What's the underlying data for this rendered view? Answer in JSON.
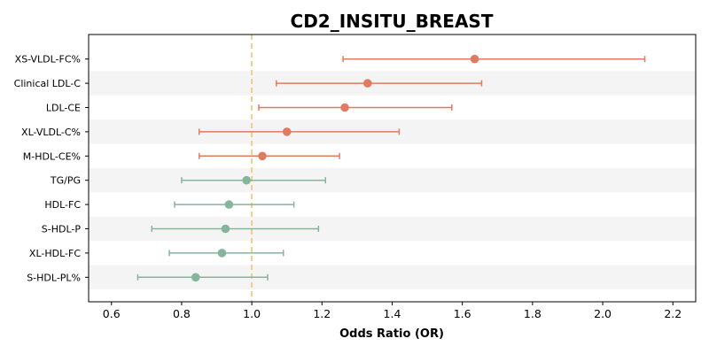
{
  "chart_data": {
    "type": "forest",
    "title": "CD2_INSITU_BREAST",
    "xlabel": "Odds Ratio (OR)",
    "ylabel": "",
    "xlim": [
      0.535,
      2.265
    ],
    "xticks": [
      "0.6",
      "0.8",
      "1.0",
      "1.2",
      "1.4",
      "1.6",
      "1.8",
      "2.0",
      "2.2"
    ],
    "reference_line": 1.0,
    "grid": false,
    "row_banding": true,
    "colors": {
      "positive": "#e07b61",
      "negative": "#85b59b",
      "reference": "#f5c97a",
      "band": "#f4f4f4"
    },
    "rows": [
      {
        "label": "XS-VLDL-FC%",
        "or": 1.635,
        "lower": 1.26,
        "upper": 2.12
      },
      {
        "label": "Clinical LDL-C",
        "or": 1.33,
        "lower": 1.07,
        "upper": 1.655
      },
      {
        "label": "LDL-CE",
        "or": 1.265,
        "lower": 1.02,
        "upper": 1.57
      },
      {
        "label": "XL-VLDL-C%",
        "or": 1.1,
        "lower": 0.85,
        "upper": 1.42
      },
      {
        "label": "M-HDL-CE%",
        "or": 1.03,
        "lower": 0.85,
        "upper": 1.25
      },
      {
        "label": "TG/PG",
        "or": 0.985,
        "lower": 0.8,
        "upper": 1.21
      },
      {
        "label": "HDL-FC",
        "or": 0.935,
        "lower": 0.78,
        "upper": 1.12
      },
      {
        "label": "S-HDL-P",
        "or": 0.925,
        "lower": 0.715,
        "upper": 1.19
      },
      {
        "label": "XL-HDL-FC",
        "or": 0.915,
        "lower": 0.765,
        "upper": 1.09
      },
      {
        "label": "S-HDL-PL%",
        "or": 0.84,
        "lower": 0.675,
        "upper": 1.045
      }
    ]
  }
}
